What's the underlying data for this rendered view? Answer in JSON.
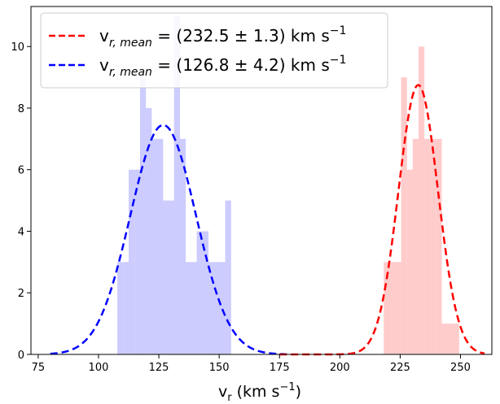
{
  "chart_data": {
    "type": "bar",
    "xlim": [
      72,
      263
    ],
    "ylim": [
      0,
      11.3
    ],
    "xticks": [
      75,
      100,
      125,
      150,
      175,
      200,
      225,
      250
    ],
    "yticks": [
      0,
      2,
      4,
      6,
      8,
      10
    ],
    "xlabel": {
      "main": "v",
      "sub": "r",
      "unit": " (km s",
      "sup": "−1",
      "close": ")"
    },
    "grid": false,
    "legend_position": "upper-left",
    "bin_width": 2.35,
    "series": [
      {
        "kind": "histogram",
        "color": "#ccccff",
        "bins": [
          {
            "x": 107.8,
            "value": 3
          },
          {
            "x": 110.2,
            "value": 3
          },
          {
            "x": 112.5,
            "value": 6
          },
          {
            "x": 114.9,
            "value": 6
          },
          {
            "x": 117.2,
            "value": 9
          },
          {
            "x": 119.6,
            "value": 8
          },
          {
            "x": 121.9,
            "value": 7
          },
          {
            "x": 124.3,
            "value": 7
          },
          {
            "x": 126.6,
            "value": 5
          },
          {
            "x": 129.0,
            "value": 5
          },
          {
            "x": 131.3,
            "value": 11
          },
          {
            "x": 133.7,
            "value": 7
          },
          {
            "x": 136.0,
            "value": 3
          },
          {
            "x": 138.4,
            "value": 3
          },
          {
            "x": 140.7,
            "value": 4
          },
          {
            "x": 143.1,
            "value": 4
          },
          {
            "x": 145.4,
            "value": 3
          },
          {
            "x": 147.8,
            "value": 3
          },
          {
            "x": 150.1,
            "value": 3
          },
          {
            "x": 152.5,
            "value": 5
          }
        ]
      },
      {
        "kind": "histogram",
        "color": "#ffcccc",
        "bins": [
          {
            "x": 218.2,
            "value": 3
          },
          {
            "x": 220.6,
            "value": 3
          },
          {
            "x": 223.0,
            "value": 3
          },
          {
            "x": 225.4,
            "value": 9
          },
          {
            "x": 227.8,
            "value": 6
          },
          {
            "x": 230.2,
            "value": 7
          },
          {
            "x": 232.6,
            "value": 10
          },
          {
            "x": 235.0,
            "value": 7
          },
          {
            "x": 237.4,
            "value": 7
          },
          {
            "x": 239.8,
            "value": 7
          },
          {
            "x": 242.2,
            "value": 1
          },
          {
            "x": 244.6,
            "value": 1
          },
          {
            "x": 247.0,
            "value": 1
          }
        ]
      },
      {
        "kind": "gaussian",
        "color": "#0000ff",
        "mean": 126.8,
        "sigma": 13.6,
        "amplitude": 7.45,
        "x_range": [
          80,
          178
        ]
      },
      {
        "kind": "gaussian",
        "color": "#ff0000",
        "mean": 232.5,
        "sigma": 8.2,
        "amplitude": 8.75,
        "x_range": [
          175,
          260
        ]
      }
    ],
    "legend": [
      {
        "color": "#ff0000",
        "prefix": "v",
        "sub": "r, mean",
        "text": " = (232.5 ± 1.3) km s",
        "sup": "−1"
      },
      {
        "color": "#0000ff",
        "prefix": "v",
        "sub": "r, mean",
        "text": " = (126.8 ± 4.2) km s",
        "sup": "−1"
      }
    ]
  }
}
